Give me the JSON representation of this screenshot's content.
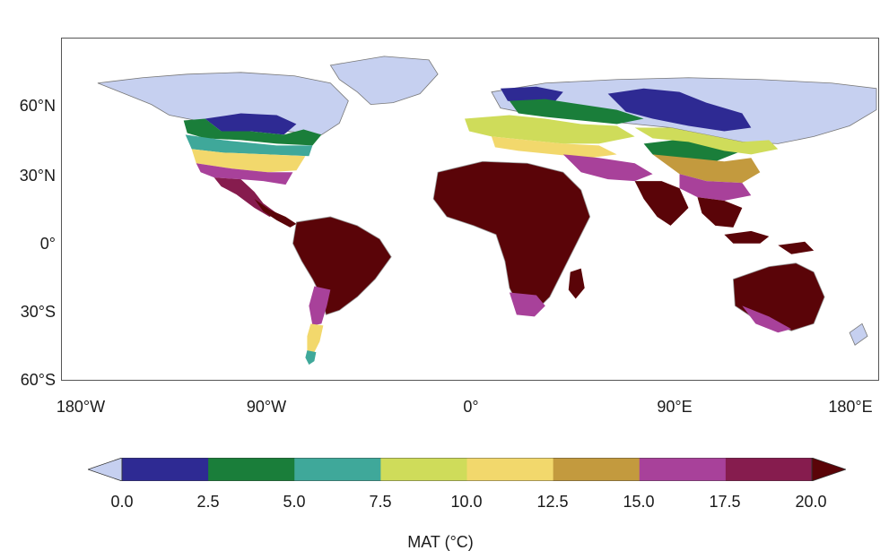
{
  "map": {
    "lat_labels": [
      "60°N",
      "30°N",
      "0°",
      "30°S",
      "60°S"
    ],
    "lon_labels": [
      "180°W",
      "90°W",
      "0°",
      "90°E",
      "180°E"
    ],
    "colors": {
      "below_0": "#c6d0f0",
      "0_2.5": "#2e2a93",
      "2.5_5": "#1a7e3a",
      "5_7.5": "#3fa89a",
      "7.5_10": "#cfdc5a",
      "10_12.5": "#f2d86c",
      "12.5_15": "#c39a3e",
      "15_17.5": "#a8419a",
      "17.5_20": "#861c4e",
      "above_20": "#5a0408"
    }
  },
  "colorbar": {
    "ticks": [
      "0.0",
      "2.5",
      "5.0",
      "7.5",
      "10.0",
      "12.5",
      "15.0",
      "17.5",
      "20.0"
    ],
    "title": "MAT (°C)",
    "bins": [
      "#2e2a93",
      "#1a7e3a",
      "#3fa89a",
      "#cfdc5a",
      "#f2d86c",
      "#c39a3e",
      "#a8419a",
      "#861c4e"
    ],
    "low_extend": "#c6d0f0",
    "high_extend": "#5a0408"
  }
}
